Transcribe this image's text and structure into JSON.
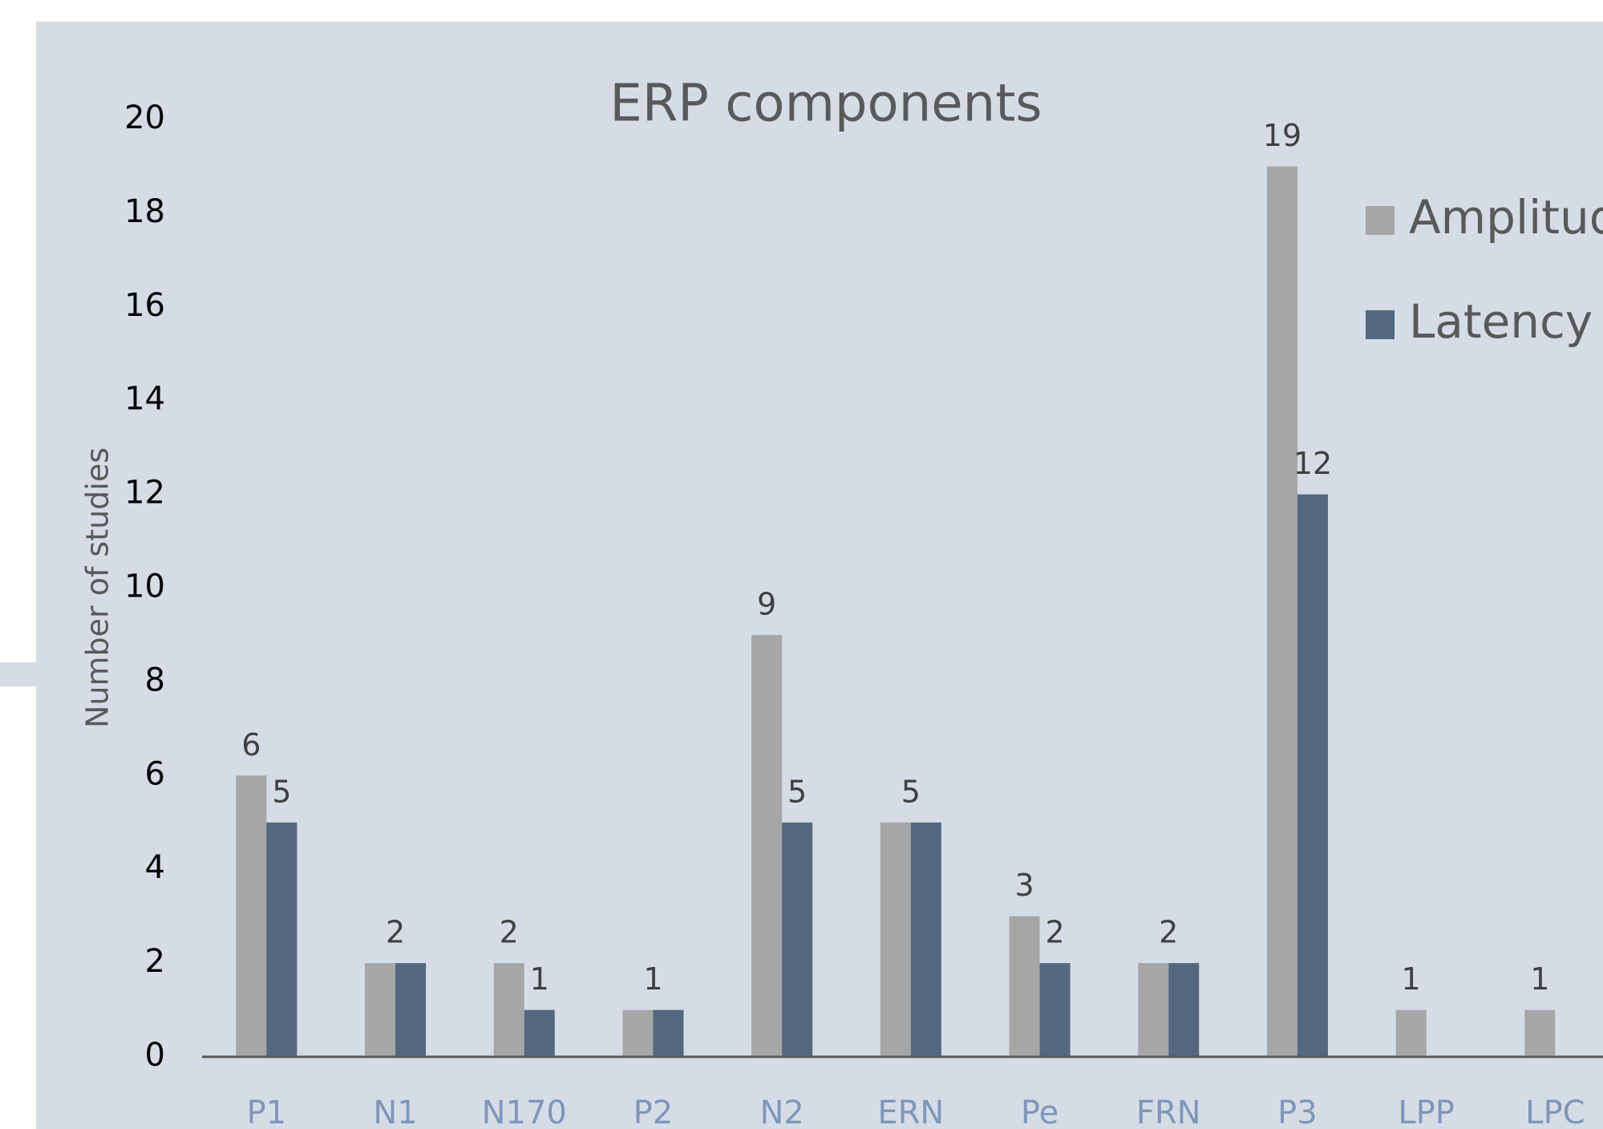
{
  "chart_data": {
    "type": "bar",
    "title": "ERP components",
    "y_label": "Number of studies",
    "categories": [
      "P1",
      "N1",
      "N170",
      "P2",
      "N2",
      "ERN",
      "Pe",
      "FRN",
      "P3",
      "LPP",
      "LPC"
    ],
    "series": [
      {
        "name": "Amplitude",
        "color": "#a6a6a6",
        "values": [
          6,
          2,
          2,
          1,
          9,
          5,
          3,
          2,
          19,
          1,
          1
        ]
      },
      {
        "name": "Latency",
        "color": "#53677f",
        "values": [
          5,
          2,
          1,
          1,
          5,
          5,
          2,
          2,
          12,
          null,
          null
        ]
      }
    ],
    "ylim": [
      0,
      20
    ],
    "yticks": [
      0,
      2,
      4,
      6,
      8,
      10,
      12,
      14,
      16,
      18,
      20
    ],
    "grid": false
  }
}
